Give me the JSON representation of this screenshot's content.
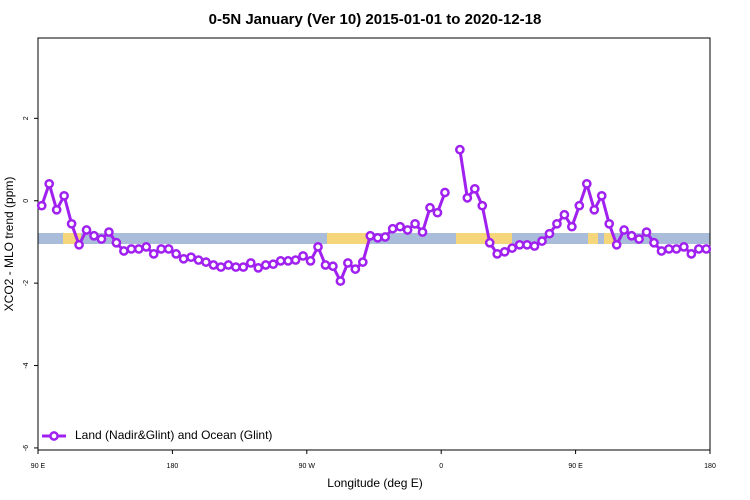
{
  "chart_data": {
    "type": "line",
    "title": "0-5N January (Ver 10)   2015-01-01 to 2020-12-18",
    "x_label": "Longitude (deg E)",
    "y_label": "XCO2 - MLO trend (ppm)",
    "xlim": [
      90,
      540
    ],
    "xticks": [
      {
        "value": 90,
        "label": "90 E"
      },
      {
        "value": 180,
        "label": "180"
      },
      {
        "value": 270,
        "label": "90 W"
      },
      {
        "value": 360,
        "label": "0"
      },
      {
        "value": 450,
        "label": "90 E"
      },
      {
        "value": 540,
        "label": "180"
      }
    ],
    "ylim": [
      -6.05,
      3.95
    ],
    "yticks": [
      -6,
      -4,
      -2,
      0,
      2
    ],
    "legend": "bottom-left",
    "x": [
      92.5,
      97.5,
      102.5,
      107.5,
      112.5,
      117.5,
      122.5,
      127.5,
      132.5,
      137.5,
      142.5,
      147.5,
      152.5,
      157.5,
      162.5,
      167.5,
      172.5,
      177.5,
      182.5,
      187.5,
      192.5,
      197.5,
      202.5,
      207.5,
      212.5,
      217.5,
      222.5,
      227.5,
      232.5,
      237.5,
      242.5,
      247.5,
      252.5,
      257.5,
      262.5,
      267.5,
      272.5,
      277.5,
      282.5,
      287.5,
      292.5,
      297.5,
      302.5,
      307.5,
      312.5,
      317.5,
      322.5,
      327.5,
      332.5,
      337.5,
      342.5,
      347.5,
      352.5,
      357.5,
      362.5,
      367.5,
      372.5,
      377.5,
      382.5,
      387.5,
      392.5,
      397.5,
      402.5,
      407.5,
      412.5,
      417.5,
      422.5,
      427.5,
      432.5,
      437.5,
      442.5,
      447.5,
      452.5,
      457.5,
      462.5,
      467.5,
      472.5,
      477.5,
      482.5,
      487.5,
      492.5,
      497.5,
      502.5,
      507.5,
      512.5,
      517.5,
      522.5,
      527.5,
      532.5,
      537.5
    ],
    "series": [
      {
        "name": "Land (Nadir&Glint) and Ocean (Glint)",
        "color": "#a020f0",
        "values": [
          -0.12,
          0.41,
          -0.22,
          0.12,
          -0.56,
          -1.07,
          -0.71,
          -0.85,
          -0.93,
          -0.76,
          -1.02,
          -1.22,
          -1.17,
          -1.17,
          -1.12,
          -1.29,
          -1.17,
          -1.17,
          -1.29,
          -1.41,
          -1.37,
          -1.44,
          -1.49,
          -1.56,
          -1.61,
          -1.56,
          -1.61,
          -1.61,
          -1.51,
          -1.63,
          -1.56,
          -1.54,
          -1.46,
          -1.46,
          -1.44,
          -1.34,
          -1.46,
          -1.12,
          -1.56,
          -1.59,
          -1.95,
          -1.51,
          -1.66,
          -1.49,
          -0.85,
          -0.9,
          -0.88,
          -0.68,
          -0.63,
          -0.71,
          -0.56,
          -0.76,
          -0.17,
          -0.29,
          0.2,
          null,
          1.24,
          0.07,
          0.29,
          -0.12,
          -1.02,
          -1.29,
          -1.24,
          -1.15,
          -1.07,
          -1.07,
          -1.1,
          -0.98,
          -0.8,
          -0.56,
          -0.34,
          -0.63,
          -0.12,
          0.41,
          -0.22,
          0.12,
          -0.56,
          -1.07,
          -0.71,
          -0.85,
          -0.93,
          -0.76,
          -1.02,
          -1.22,
          -1.17,
          -1.17,
          -1.12,
          -1.29,
          -1.17,
          -1.17
        ]
      }
    ]
  }
}
